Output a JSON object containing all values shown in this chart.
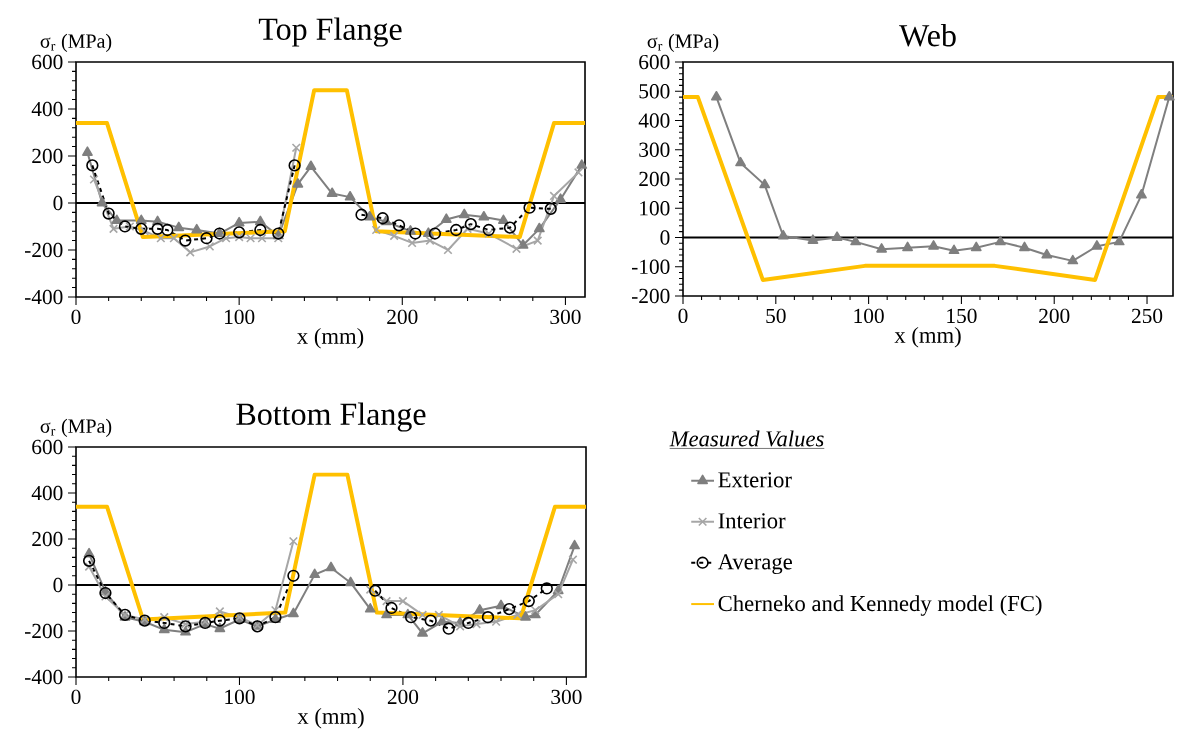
{
  "chart_data": [
    {
      "type": "line",
      "title": "Top Flange",
      "xlabel": "x (mm)",
      "ylabel": "σ$_{r}$ (MPa)",
      "xlim": [
        0,
        312
      ],
      "ylim": [
        -400,
        600
      ],
      "xticks": [
        0,
        100,
        200,
        300
      ],
      "yticks": [
        -400,
        -200,
        0,
        200,
        400,
        600
      ],
      "legend": false,
      "ref_lines": [
        {
          "axis": "y",
          "value": 0,
          "color": "#000000"
        }
      ],
      "series": [
        {
          "color": "#7f7f7f",
          "marker": "triangle",
          "line_style": "solid",
          "x": [
            7,
            16,
            25,
            40,
            50,
            63,
            74,
            88,
            100,
            113,
            124,
            136,
            144,
            157,
            168,
            180,
            190,
            205,
            216,
            227,
            238,
            250,
            262,
            274,
            284,
            297,
            310
          ],
          "values": [
            215,
            0,
            -75,
            -75,
            -80,
            -105,
            -115,
            -130,
            -85,
            -80,
            -140,
            80,
            155,
            40,
            25,
            -60,
            -80,
            -120,
            -130,
            -70,
            -50,
            -60,
            -75,
            -180,
            -110,
            15,
            160
          ]
        },
        {
          "color": "#a6a6a6",
          "marker": "cross",
          "line_style": "solid",
          "x": [
            11,
            23,
            33,
            42,
            52,
            60,
            70,
            82,
            92,
            100,
            107,
            114,
            124,
            135,
            160,
            184,
            195,
            206,
            217,
            228,
            240,
            253,
            270,
            283,
            293,
            308
          ],
          "values": [
            100,
            -110,
            -100,
            -120,
            -150,
            -150,
            -210,
            -185,
            -150,
            -145,
            -150,
            -150,
            -150,
            235,
            null,
            -115,
            -140,
            -170,
            -160,
            -200,
            -110,
            -130,
            -195,
            -160,
            30,
            130
          ]
        },
        {
          "color": "#000000",
          "marker": "circle",
          "line_style": "dashed",
          "x": [
            10,
            20,
            30,
            40,
            50,
            56,
            67,
            80,
            88,
            100,
            113,
            124,
            134,
            155,
            175,
            188,
            198,
            208,
            220,
            233,
            242,
            253,
            266,
            278,
            291
          ],
          "values": [
            160,
            -45,
            -100,
            -110,
            -110,
            -115,
            -160,
            -150,
            -130,
            -125,
            -115,
            -130,
            160,
            null,
            -50,
            -65,
            -95,
            -130,
            -130,
            -115,
            -90,
            -115,
            -105,
            -20,
            -25
          ]
        },
        {
          "color": "#ffc000",
          "marker": "none",
          "line_style": "solid",
          "x": [
            0,
            19,
            41,
            128,
            146,
            166,
            184,
            272,
            293,
            312
          ],
          "values": [
            340,
            340,
            -145,
            -120,
            480,
            480,
            -120,
            -145,
            340,
            340
          ]
        }
      ]
    },
    {
      "type": "line",
      "title": "Web",
      "xlabel": "x (mm)",
      "ylabel": "σ$_{r}$ (MPa)",
      "xlim": [
        0,
        264
      ],
      "ylim": [
        -200,
        600
      ],
      "xticks": [
        0,
        50,
        100,
        150,
        200,
        250
      ],
      "yticks": [
        -200,
        -100,
        0,
        100,
        200,
        300,
        400,
        500,
        600
      ],
      "legend": false,
      "ref_lines": [
        {
          "axis": "y",
          "value": 0,
          "color": "#000000"
        }
      ],
      "series": [
        {
          "color": "#7f7f7f",
          "marker": "triangle",
          "line_style": "solid",
          "x": [
            18,
            31,
            44,
            54,
            70,
            83,
            93,
            107,
            121,
            135,
            146,
            158,
            171,
            184,
            196,
            210,
            223,
            235,
            247,
            262
          ],
          "values": [
            480,
            255,
            180,
            5,
            -10,
            0,
            -15,
            -40,
            -35,
            -30,
            -45,
            -35,
            -15,
            -35,
            -60,
            -80,
            -30,
            -15,
            145,
            480
          ]
        },
        {
          "color": "#ffc000",
          "marker": "none",
          "line_style": "solid",
          "x": [
            0,
            8,
            43,
            98,
            168,
            222,
            256,
            264
          ],
          "values": [
            480,
            480,
            -145,
            -97,
            -97,
            -145,
            480,
            480
          ]
        }
      ]
    },
    {
      "type": "line",
      "title": "Bottom Flange",
      "xlabel": "x (mm)",
      "ylabel": "σ$_{r}$ (MPa)",
      "xlim": [
        0,
        312
      ],
      "ylim": [
        -400,
        600
      ],
      "xticks": [
        0,
        100,
        200,
        300
      ],
      "yticks": [
        -400,
        -200,
        0,
        200,
        400,
        600
      ],
      "legend": "right",
      "legend_title": "Measured Values",
      "ref_lines": [
        {
          "axis": "y",
          "value": 0,
          "color": "#000000"
        }
      ],
      "series": [
        {
          "name": "Exterior",
          "color": "#7f7f7f",
          "marker": "triangle",
          "line_style": "solid",
          "x": [
            8,
            18,
            30,
            42,
            54,
            67,
            79,
            88,
            100,
            111,
            122,
            133,
            146,
            156,
            168,
            180,
            190,
            203,
            212,
            224,
            235,
            247,
            260,
            275,
            281,
            295,
            305
          ],
          "values": [
            135,
            -30,
            -140,
            -160,
            -195,
            -205,
            -170,
            -190,
            -150,
            -180,
            -150,
            -125,
            45,
            75,
            10,
            -105,
            -130,
            -130,
            -210,
            -160,
            -165,
            -110,
            -90,
            -140,
            -130,
            -25,
            170
          ]
        },
        {
          "name": "Interior",
          "color": "#a6a6a6",
          "marker": "cross",
          "line_style": "solid",
          "x": [
            8,
            18,
            30,
            42,
            54,
            67,
            79,
            88,
            100,
            111,
            122,
            133,
            155,
            180,
            190,
            200,
            212,
            222,
            235,
            245,
            257,
            270,
            281,
            295,
            304
          ],
          "values": [
            80,
            -50,
            -130,
            -150,
            -140,
            -170,
            -160,
            -115,
            -140,
            -175,
            -110,
            190,
            null,
            -20,
            -70,
            -70,
            -130,
            -130,
            -180,
            -170,
            -160,
            -130,
            -110,
            -40,
            110
          ]
        },
        {
          "name": "Average",
          "color": "#000000",
          "marker": "circle",
          "line_style": "dashed",
          "x": [
            8,
            18,
            30,
            42,
            54,
            67,
            79,
            88,
            100,
            111,
            122,
            133,
            158,
            183,
            193,
            205,
            217,
            228,
            240,
            252,
            265,
            277,
            288
          ],
          "values": [
            105,
            -35,
            -130,
            -155,
            -165,
            -180,
            -165,
            -155,
            -145,
            -180,
            -140,
            40,
            null,
            -25,
            -100,
            -140,
            -155,
            -190,
            -165,
            -140,
            -105,
            -70,
            -15
          ]
        },
        {
          "name": "Cherneko and Kennedy model (FC)",
          "color": "#ffc000",
          "marker": "none",
          "line_style": "solid",
          "x": [
            0,
            19,
            41,
            128,
            146,
            166,
            184,
            272,
            293,
            312
          ],
          "values": [
            340,
            340,
            -150,
            -120,
            480,
            480,
            -120,
            -145,
            340,
            340
          ]
        }
      ]
    }
  ]
}
